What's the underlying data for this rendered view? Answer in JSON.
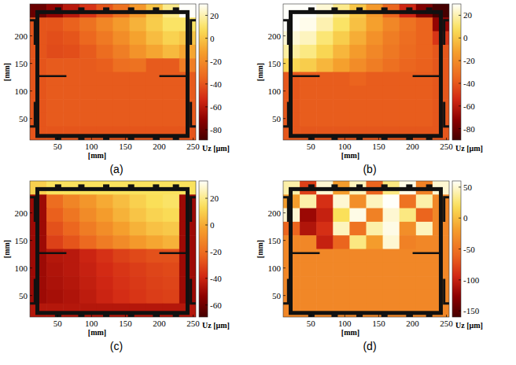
{
  "chart_data": [
    {
      "type": "heatmap",
      "title": "(a)",
      "xlabel": "[mm]",
      "ylabel": "[mm]",
      "colorbar_label": "Uz [μm]",
      "xlim": [
        9,
        254
      ],
      "ylim": [
        11,
        258
      ],
      "xticks": [
        50,
        100,
        150,
        200,
        250
      ],
      "yticks": [
        50,
        100,
        150,
        200
      ],
      "clim": [
        -89,
        30
      ],
      "cticks": [
        -80,
        -60,
        -40,
        -20,
        0,
        20
      ],
      "cells": [
        [
          -80,
          -70,
          -60,
          -50,
          -40,
          -30,
          -15,
          0,
          15,
          30
        ],
        [
          -40,
          -40,
          -36,
          -30,
          -22,
          -14,
          -6,
          2,
          10,
          10
        ],
        [
          -40,
          -42,
          -40,
          -34,
          -27,
          -19,
          -11,
          -3,
          4,
          0
        ],
        [
          -40,
          -43,
          -42,
          -38,
          -32,
          -25,
          -17,
          -10,
          -4,
          -10
        ],
        [
          -40,
          -38,
          -38,
          -38,
          -37,
          -31,
          -30,
          -38,
          -38,
          -25
        ],
        [
          -40,
          -38,
          -38,
          -38,
          -38,
          -38,
          -38,
          -38,
          -38,
          -38
        ],
        [
          -40,
          -38,
          -38,
          -38,
          -38,
          -38,
          -38,
          -38,
          -38,
          -38
        ],
        [
          -40,
          -38,
          -38,
          -38,
          -38,
          -38,
          -38,
          -38,
          -38,
          -38
        ],
        [
          -40,
          -38,
          -38,
          -38,
          -38,
          -38,
          -38,
          -38,
          -38,
          -38
        ],
        [
          -40,
          -40,
          -40,
          -40,
          -40,
          -40,
          -40,
          -40,
          -40,
          -40
        ]
      ]
    },
    {
      "type": "heatmap",
      "title": "(b)",
      "xlabel": "[mm]",
      "ylabel": "[mm]",
      "colorbar_label": "Uz [μm]",
      "xlim": [
        9,
        254
      ],
      "ylim": [
        11,
        258
      ],
      "xticks": [
        50,
        100,
        150,
        200,
        250
      ],
      "yticks": [
        50,
        100,
        150,
        200
      ],
      "clim": [
        -90,
        30
      ],
      "cticks": [
        -80,
        -60,
        -40,
        -20,
        0,
        20
      ],
      "cells": [
        [
          30,
          30,
          25,
          15,
          0,
          -15,
          -35,
          -55,
          -75,
          -90
        ],
        [
          30,
          28,
          20,
          10,
          -2,
          -12,
          -22,
          -30,
          -36,
          -70
        ],
        [
          25,
          22,
          12,
          2,
          -8,
          -18,
          -26,
          -32,
          -36,
          -50
        ],
        [
          18,
          14,
          5,
          -5,
          -14,
          -22,
          -28,
          -33,
          -36,
          -40
        ],
        [
          5,
          2,
          -5,
          -12,
          -20,
          -26,
          -31,
          -35,
          -37,
          -40
        ],
        [
          -40,
          -38,
          -38,
          -38,
          -36,
          -38,
          -38,
          -38,
          -38,
          -40
        ],
        [
          -40,
          -38,
          -38,
          -38,
          -38,
          -38,
          -38,
          -38,
          -38,
          -40
        ],
        [
          -40,
          -38,
          -38,
          -38,
          -38,
          -38,
          -38,
          -38,
          -38,
          -40
        ],
        [
          -40,
          -38,
          -38,
          -38,
          -38,
          -38,
          -38,
          -38,
          -38,
          -40
        ],
        [
          -40,
          -40,
          -40,
          -40,
          -40,
          -40,
          -40,
          -40,
          -40,
          -40
        ]
      ]
    },
    {
      "type": "heatmap",
      "title": "(c)",
      "xlabel": "[mm]",
      "ylabel": "[mm]",
      "colorbar_label": "Uz [μm]",
      "xlim": [
        9,
        254
      ],
      "ylim": [
        11,
        258
      ],
      "xticks": [
        50,
        100,
        150,
        200,
        250
      ],
      "yticks": [
        50,
        100,
        150,
        200
      ],
      "clim": [
        -69,
        33
      ],
      "cticks": [
        -60,
        -40,
        -20,
        0,
        20
      ],
      "cells": [
        [
          10,
          15,
          15,
          15,
          15,
          15,
          15,
          15,
          15,
          15
        ],
        [
          -50,
          -20,
          -12,
          -6,
          0,
          5,
          10,
          14,
          16,
          -50
        ],
        [
          -50,
          -24,
          -17,
          -10,
          -4,
          2,
          7,
          11,
          13,
          -50
        ],
        [
          -50,
          -28,
          -22,
          -15,
          -9,
          -3,
          2,
          6,
          8,
          -50
        ],
        [
          -50,
          -32,
          -27,
          -21,
          -15,
          -10,
          -5,
          -1,
          2,
          -50
        ],
        [
          -50,
          -45,
          -44,
          -40,
          -36,
          -32,
          -30,
          -28,
          -28,
          -50
        ],
        [
          -50,
          -46,
          -44,
          -41,
          -38,
          -35,
          -33,
          -31,
          -30,
          -50
        ],
        [
          -50,
          -47,
          -45,
          -42,
          -39,
          -36,
          -34,
          -32,
          -31,
          -50
        ],
        [
          -50,
          -48,
          -46,
          -43,
          -40,
          -37,
          -35,
          -33,
          -32,
          -50
        ],
        [
          -45,
          -45,
          -45,
          -45,
          -45,
          -45,
          -45,
          -45,
          -45,
          -45
        ]
      ]
    },
    {
      "type": "heatmap",
      "title": "(d)",
      "xlabel": "[mm]",
      "ylabel": "[mm]",
      "colorbar_label": "Uz [μm]",
      "xlim": [
        9,
        254
      ],
      "ylim": [
        11,
        258
      ],
      "xticks": [
        50,
        100,
        150,
        200,
        250
      ],
      "yticks": [
        50,
        100,
        150,
        200
      ],
      "clim": [
        -160,
        60
      ],
      "cticks": [
        -150,
        -100,
        -50,
        0,
        50
      ],
      "cells": [
        [
          40,
          -80,
          50,
          -20,
          45,
          -60,
          30,
          55,
          -40,
          50
        ],
        [
          -20,
          40,
          -90,
          50,
          -30,
          45,
          60,
          -50,
          40,
          -35
        ],
        [
          50,
          -120,
          -100,
          20,
          55,
          -40,
          50,
          30,
          -60,
          -35
        ],
        [
          -60,
          -110,
          -90,
          45,
          -50,
          40,
          55,
          -30,
          45,
          -35
        ],
        [
          -35,
          -35,
          -100,
          -60,
          30,
          -20,
          50,
          -40,
          -35,
          -35
        ],
        [
          -35,
          -35,
          -35,
          -35,
          -35,
          -35,
          -35,
          -35,
          -35,
          -35
        ],
        [
          -35,
          -35,
          -35,
          -35,
          -35,
          -35,
          -35,
          -35,
          -35,
          -35
        ],
        [
          -35,
          -35,
          -35,
          -35,
          -35,
          -35,
          -35,
          -35,
          -35,
          -35
        ],
        [
          -35,
          -35,
          -35,
          -35,
          -35,
          -35,
          -35,
          -35,
          -35,
          -35
        ],
        [
          -35,
          -35,
          -35,
          -35,
          -35,
          -35,
          -35,
          -35,
          -35,
          -35
        ]
      ]
    }
  ]
}
